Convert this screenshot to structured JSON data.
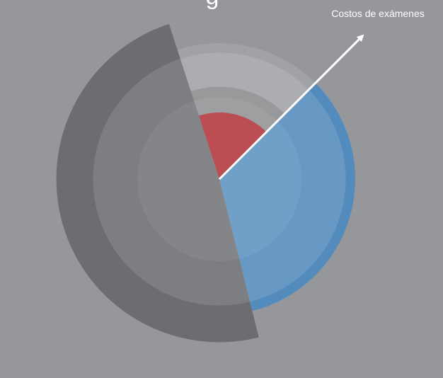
{
  "chart_data": {
    "type": "pie",
    "title": "",
    "top_text": "g",
    "annotation": {
      "label": "Costos de exámenes",
      "direction_deg": 45
    },
    "rings": [
      {
        "name": "outer",
        "radius": 1.0,
        "color": "#a1a2a6",
        "opacity": 0.9
      },
      {
        "name": "middle",
        "radius": 0.68,
        "color": "#8a8b8e",
        "opacity": 0.6
      },
      {
        "name": "inner",
        "radius": 0.49,
        "color": "#848587",
        "opacity": 1.0
      }
    ],
    "slices": [
      {
        "name": "red",
        "start_deg": 45,
        "end_deg": 108,
        "radius": 0.49,
        "color": "#ae2a30"
      },
      {
        "name": "blue",
        "start_deg": -76,
        "end_deg": 45,
        "radius": 1.0,
        "color": "#548bbd"
      },
      {
        "name": "dark",
        "start_deg": 108,
        "end_deg": 284,
        "radius": 1.2,
        "color": "#6c6d71"
      }
    ]
  }
}
